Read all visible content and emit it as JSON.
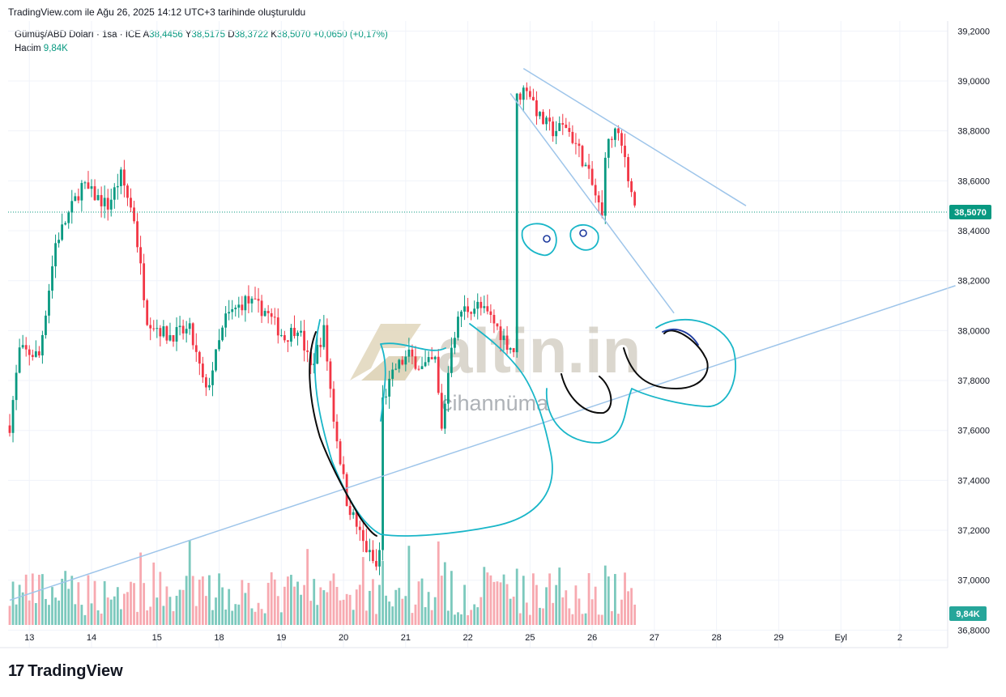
{
  "header": {
    "caption": "TradingView.com ile Ağu 26, 2025 14:12 UTC+3 tarihinde oluşturuldu"
  },
  "legend": {
    "symbol": "Gümüş/ABD Doları · 1sa · ICE",
    "open_label": "A",
    "open": "38,4456",
    "high_label": "Y",
    "high": "38,5175",
    "low_label": "D",
    "low": "38,3722",
    "close_label": "K",
    "close": "38,5070",
    "change": "+0,0650 (+0,17%)",
    "volume_label": "Hacim",
    "volume": "9,84K"
  },
  "watermark": {
    "brand": "altin.in",
    "sub": "cihannüma"
  },
  "footer": {
    "logo_text": "TradingView"
  },
  "colors": {
    "up": "#089981",
    "down": "#f23645",
    "up_vol": "#7cc9bd",
    "down_vol": "#f7a9b0",
    "trendline": "#9ec5ea",
    "drawing": "#19b6c8",
    "price_badge": "#089981"
  },
  "chart_data": {
    "type": "candlestick",
    "symbol": "Gümüş/ABD Doları",
    "interval": "1sa",
    "y_ticks": [
      "39,2000",
      "39,0000",
      "38,8000",
      "38,6000",
      "38,4000",
      "38,2000",
      "38,0000",
      "37,8000",
      "37,6000",
      "37,4000",
      "37,2000",
      "37,0000",
      "36,8000"
    ],
    "ylim": [
      36.73,
      39.24
    ],
    "x_ticks": [
      "13",
      "14",
      "15",
      "18",
      "19",
      "20",
      "21",
      "22",
      "25",
      "26",
      "27",
      "28",
      "29",
      "Eyl",
      "2"
    ],
    "last_price": "38,5070",
    "last_volume": "9,84K",
    "grid": true,
    "anchors": [
      {
        "i": 0,
        "p": 37.62
      },
      {
        "i": 3,
        "p": 37.92
      },
      {
        "i": 9,
        "p": 37.9
      },
      {
        "i": 14,
        "p": 38.35
      },
      {
        "i": 22,
        "p": 38.58
      },
      {
        "i": 30,
        "p": 38.5
      },
      {
        "i": 34,
        "p": 38.62
      },
      {
        "i": 38,
        "p": 38.45
      },
      {
        "i": 42,
        "p": 38.05
      },
      {
        "i": 48,
        "p": 37.98
      },
      {
        "i": 55,
        "p": 38.0
      },
      {
        "i": 60,
        "p": 37.75
      },
      {
        "i": 66,
        "p": 38.05
      },
      {
        "i": 72,
        "p": 38.12
      },
      {
        "i": 78,
        "p": 38.08
      },
      {
        "i": 84,
        "p": 37.97
      },
      {
        "i": 88,
        "p": 38.02
      },
      {
        "i": 92,
        "p": 37.85
      },
      {
        "i": 96,
        "p": 38.0
      },
      {
        "i": 99,
        "p": 37.65
      },
      {
        "i": 103,
        "p": 37.32
      },
      {
        "i": 108,
        "p": 37.15
      },
      {
        "i": 112,
        "p": 37.05
      },
      {
        "i": 113,
        "p": 37.12
      },
      {
        "i": 114,
        "p": 37.72
      },
      {
        "i": 118,
        "p": 37.85
      },
      {
        "i": 122,
        "p": 37.9
      },
      {
        "i": 126,
        "p": 37.85
      },
      {
        "i": 130,
        "p": 37.88
      },
      {
        "i": 132,
        "p": 37.6
      },
      {
        "i": 135,
        "p": 37.95
      },
      {
        "i": 138,
        "p": 38.08
      },
      {
        "i": 143,
        "p": 38.1
      },
      {
        "i": 147,
        "p": 38.05
      },
      {
        "i": 152,
        "p": 37.95
      },
      {
        "i": 154,
        "p": 37.92
      },
      {
        "i": 155,
        "p": 38.93
      },
      {
        "i": 158,
        "p": 38.98
      },
      {
        "i": 162,
        "p": 38.85
      },
      {
        "i": 166,
        "p": 38.8
      },
      {
        "i": 170,
        "p": 38.82
      },
      {
        "i": 174,
        "p": 38.72
      },
      {
        "i": 177,
        "p": 38.62
      },
      {
        "i": 180,
        "p": 38.5
      },
      {
        "i": 181,
        "p": 38.45
      },
      {
        "i": 182,
        "p": 38.72
      },
      {
        "i": 185,
        "p": 38.8
      },
      {
        "i": 188,
        "p": 38.7
      },
      {
        "i": 190,
        "p": 38.55
      },
      {
        "i": 191,
        "p": 38.51
      }
    ],
    "candle_count": 192,
    "trendlines": [
      {
        "from": [
          0,
          36.92
        ],
        "to": [
          289,
          38.18
        ]
      },
      {
        "from": [
          157,
          39.05
        ],
        "to": [
          225,
          38.5
        ]
      },
      {
        "from": [
          153,
          38.95
        ],
        "to": [
          203,
          38.07
        ]
      }
    ]
  }
}
